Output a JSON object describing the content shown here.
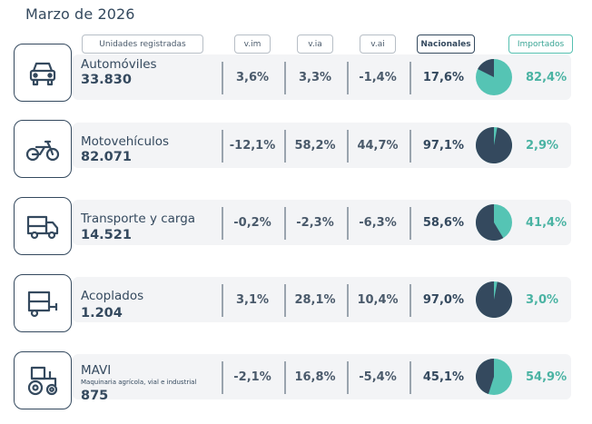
{
  "title": "Marzo de 2026",
  "headers": {
    "units": "Unidades registradas",
    "vim": "v.im",
    "via": "v.ia",
    "vai": "v.ai",
    "nacionales": "Nacionales",
    "importados": "Importados"
  },
  "colors": {
    "nacional": "#34495e",
    "importado": "#55c4b4"
  },
  "rows": [
    {
      "icon": "car-icon",
      "category": "Automóviles",
      "subtitle": "",
      "units": "33.830",
      "vim": "3,6%",
      "via": "3,3%",
      "vai": "-1,4%",
      "nacional": "17,6%",
      "importado": "82,4%",
      "nacional_share": 0.176
    },
    {
      "icon": "motorcycle-icon",
      "category": "Motovehículos",
      "subtitle": "",
      "units": "82.071",
      "vim": "-12,1%",
      "via": "58,2%",
      "vai": "44,7%",
      "nacional": "97,1%",
      "importado": "2,9%",
      "nacional_share": 0.971
    },
    {
      "icon": "truck-icon",
      "category": "Transporte y carga",
      "subtitle": "",
      "units": "14.521",
      "vim": "-0,2%",
      "via": "-2,3%",
      "vai": "-6,3%",
      "nacional": "58,6%",
      "importado": "41,4%",
      "nacional_share": 0.586
    },
    {
      "icon": "trailer-icon",
      "category": "Acoplados",
      "subtitle": "",
      "units": "1.204",
      "vim": "3,1%",
      "via": "28,1%",
      "vai": "10,4%",
      "nacional": "97,0%",
      "importado": "3,0%",
      "nacional_share": 0.97
    },
    {
      "icon": "tractor-icon",
      "category": "MAVI",
      "subtitle": "Maquinaria agrícola, vial e industrial",
      "units": "875",
      "vim": "-2,1%",
      "via": "16,8%",
      "vai": "-5,4%",
      "nacional": "45,1%",
      "importado": "54,9%",
      "nacional_share": 0.451
    }
  ]
}
